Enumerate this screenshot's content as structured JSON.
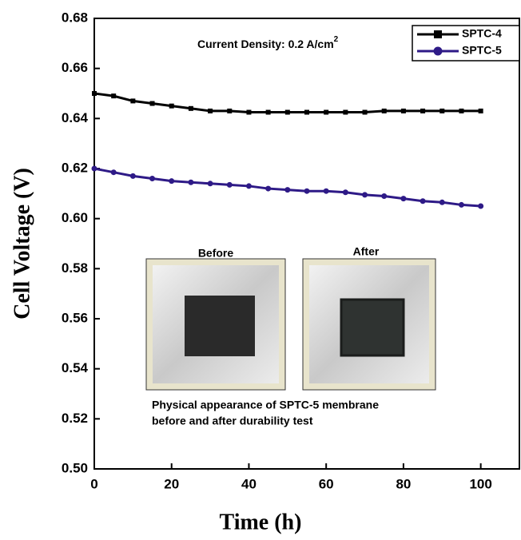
{
  "chart_data": {
    "type": "line",
    "annotation": "Current Density: 0.2 A/cm",
    "annotation_sup": "2",
    "x_label": "Time (h)",
    "y_label": "Cell Voltage (V)",
    "x": [
      0,
      5,
      10,
      15,
      20,
      25,
      30,
      35,
      40,
      45,
      50,
      55,
      60,
      65,
      70,
      75,
      80,
      85,
      90,
      95,
      100
    ],
    "series": [
      {
        "name": "SPTC-4",
        "color": "#000000",
        "marker": "square",
        "values": [
          0.65,
          0.649,
          0.647,
          0.646,
          0.645,
          0.644,
          0.643,
          0.643,
          0.6425,
          0.6425,
          0.6425,
          0.6425,
          0.6425,
          0.6425,
          0.6425,
          0.643,
          0.643,
          0.643,
          0.643,
          0.643,
          0.643
        ]
      },
      {
        "name": "SPTC-5",
        "color": "#2e1a87",
        "marker": "circle",
        "values": [
          0.62,
          0.6185,
          0.617,
          0.616,
          0.615,
          0.6145,
          0.614,
          0.6135,
          0.613,
          0.612,
          0.6115,
          0.611,
          0.611,
          0.6105,
          0.6095,
          0.609,
          0.608,
          0.607,
          0.6065,
          0.6055,
          0.605
        ]
      }
    ],
    "xlim": [
      0,
      110
    ],
    "xticks": [
      0,
      20,
      40,
      60,
      80,
      100
    ],
    "ylim": [
      0.5,
      0.68
    ],
    "yticks": [
      {
        "value": 0.5,
        "label": "0.50"
      },
      {
        "value": 0.52,
        "label": "0.52"
      },
      {
        "value": 0.54,
        "label": "0.54"
      },
      {
        "value": 0.56,
        "label": "0.56"
      },
      {
        "value": 0.58,
        "label": "0.58"
      },
      {
        "value": 0.6,
        "label": "0.60"
      },
      {
        "value": 0.62,
        "label": "0.62"
      },
      {
        "value": 0.64,
        "label": "0.64"
      },
      {
        "value": 0.66,
        "label": "0.66"
      },
      {
        "value": 0.68,
        "label": "0.68"
      }
    ],
    "legend": "upper right",
    "inset": {
      "before_label": "Before",
      "after_label": "After",
      "caption": [
        "Physical appearance of SPTC-5 membrane",
        "before and after durability test"
      ]
    }
  }
}
